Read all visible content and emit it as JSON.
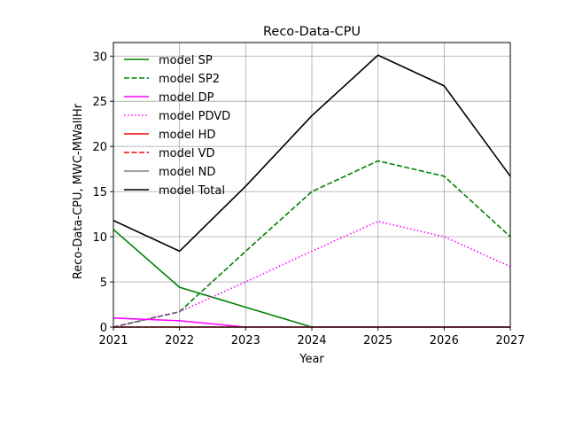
{
  "chart_data": {
    "type": "line",
    "title": "Reco-Data-CPU",
    "xlabel": "Year",
    "ylabel": "Reco-Data-CPU, MWC-MWallHr",
    "x": [
      2021,
      2022,
      2023,
      2024,
      2025,
      2026,
      2027
    ],
    "xlim": [
      2021,
      2027
    ],
    "ylim": [
      0,
      31.5
    ],
    "xticks": [
      "2021",
      "2022",
      "2023",
      "2024",
      "2025",
      "2026",
      "2027"
    ],
    "yticks": [
      0,
      5,
      10,
      15,
      20,
      25,
      30
    ],
    "ytick_labels": [
      "0",
      "5",
      "10",
      "15",
      "20",
      "25",
      "30"
    ],
    "grid": true,
    "legend_position": "top-left",
    "series": [
      {
        "name": "model SP",
        "color": "#008000",
        "style": "solid",
        "values": [
          10.8,
          4.4,
          2.2,
          0,
          0,
          0,
          0
        ]
      },
      {
        "name": "model SP2",
        "color": "#008000",
        "style": "dashed",
        "values": [
          0,
          1.7,
          8.4,
          15.0,
          18.4,
          16.7,
          10.0
        ]
      },
      {
        "name": "model DP",
        "color": "#ff00ff",
        "style": "solid",
        "values": [
          1.0,
          0.7,
          0,
          0,
          0,
          0,
          0
        ]
      },
      {
        "name": "model PDVD",
        "color": "#ff00ff",
        "style": "dotted",
        "values": [
          0,
          1.7,
          5.0,
          8.4,
          11.7,
          10.0,
          6.7
        ]
      },
      {
        "name": "model HD",
        "color": "#ff0000",
        "style": "solid",
        "values": [
          0,
          0,
          0,
          0,
          0,
          0,
          0
        ]
      },
      {
        "name": "model VD",
        "color": "#ff0000",
        "style": "dashed",
        "values": [
          0,
          0,
          0,
          0,
          0,
          0,
          0
        ]
      },
      {
        "name": "model ND",
        "color": "#808080",
        "style": "solid",
        "values": [
          0,
          0,
          0,
          0,
          0,
          0,
          0
        ]
      },
      {
        "name": "model Total",
        "color": "#000000",
        "style": "solid",
        "values": [
          11.8,
          8.4,
          15.6,
          23.4,
          30.1,
          26.7,
          16.7
        ]
      }
    ]
  }
}
